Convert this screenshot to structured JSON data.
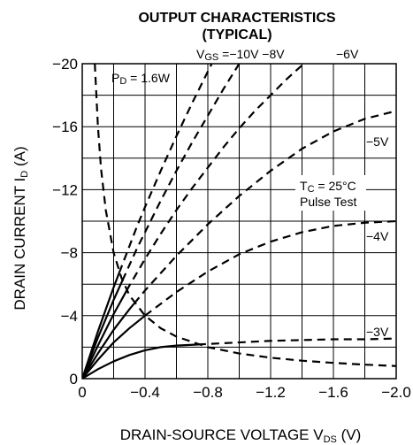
{
  "chart_data": {
    "type": "line",
    "title": "OUTPUT CHARACTERISTICS",
    "subtitle": "(TYPICAL)",
    "xlabel": {
      "main": "DRAIN-SOURCE VOLTAGE  V",
      "sub": "DS",
      "unit": " (V)"
    },
    "ylabel": {
      "main": "DRAIN CURRENT  I",
      "sub": "D",
      "unit": " (A)"
    },
    "xlim": [
      0,
      -2.0
    ],
    "ylim": [
      0,
      -20
    ],
    "x_ticks": [
      0,
      -0.4,
      -0.8,
      -1.2,
      -1.6,
      -2.0
    ],
    "x_tick_labels": [
      "0",
      "−0.4",
      "−0.8",
      "−1.2",
      "−1.6",
      "−2.0"
    ],
    "y_ticks": [
      0,
      -4,
      -8,
      -12,
      -16,
      -20
    ],
    "y_tick_labels": [
      "0",
      "−4",
      "−8",
      "−12",
      "−16",
      "−20"
    ],
    "grid": true,
    "annotations": {
      "vgs": {
        "main": "V",
        "sub": "GS",
        "rest": " =−10V −8V"
      },
      "vgs6": "−6V",
      "vgs5": "−5V",
      "vgs4": "−4V",
      "vgs3": "−3V",
      "pd": {
        "main": "P",
        "sub": "D",
        "rest": " = 1.6W"
      },
      "tc": {
        "main": "T",
        "sub": "C",
        "rest": " = 25°C"
      },
      "pulse": "Pulse Test"
    },
    "series": [
      {
        "label_key": "vgs",
        "style": "solid-then-dashed",
        "x": [
          0,
          -0.05,
          -0.1,
          -0.15,
          -0.2,
          -0.25,
          -0.3,
          -0.35,
          -0.4,
          -0.5,
          -0.6,
          -0.7,
          -0.8,
          -0.9
        ],
        "y": [
          0,
          -1.5,
          -3.0,
          -4.4,
          -5.8,
          -7.1,
          -8.4,
          -9.7,
          -10.9,
          -13.2,
          -15.4,
          -17.5,
          -19.5,
          -21.5
        ]
      },
      {
        "label_key": "vgs",
        "style": "solid-then-dashed",
        "x": [
          0,
          -0.05,
          -0.1,
          -0.15,
          -0.2,
          -0.25,
          -0.3,
          -0.35,
          -0.4,
          -0.5,
          -0.6,
          -0.7,
          -0.8,
          -0.9,
          -1.0
        ],
        "y": [
          0,
          -1.3,
          -2.6,
          -3.8,
          -5.0,
          -6.1,
          -7.2,
          -8.3,
          -9.3,
          -11.3,
          -13.2,
          -15.0,
          -16.7,
          -18.4,
          -20.0
        ]
      },
      {
        "label_key": "vgs6",
        "style": "solid-then-dashed",
        "x": [
          0,
          -0.1,
          -0.2,
          -0.3,
          -0.4,
          -0.5,
          -0.6,
          -0.7,
          -0.8,
          -0.9,
          -1.0,
          -1.1,
          -1.2,
          -1.3,
          -1.4,
          -1.45
        ],
        "y": [
          0,
          -2.1,
          -4.1,
          -5.9,
          -7.6,
          -9.2,
          -10.7,
          -12.1,
          -13.4,
          -14.7,
          -15.9,
          -17.0,
          -18.0,
          -19.0,
          -19.9,
          -20.3
        ]
      },
      {
        "label_key": "vgs5",
        "style": "solid-then-dashed",
        "x": [
          0,
          -0.1,
          -0.2,
          -0.3,
          -0.4,
          -0.6,
          -0.8,
          -1.0,
          -1.2,
          -1.4,
          -1.6,
          -1.8,
          -2.0
        ],
        "y": [
          0,
          -1.6,
          -3.1,
          -4.4,
          -5.6,
          -7.8,
          -9.8,
          -11.6,
          -13.2,
          -14.6,
          -15.7,
          -16.5,
          -17.0
        ]
      },
      {
        "label_key": "vgs4",
        "style": "solid-then-dashed",
        "x": [
          0,
          -0.1,
          -0.2,
          -0.3,
          -0.4,
          -0.6,
          -0.8,
          -1.0,
          -1.2,
          -1.4,
          -1.6,
          -1.8,
          -2.0
        ],
        "y": [
          0,
          -1.2,
          -2.3,
          -3.2,
          -4.0,
          -5.5,
          -6.8,
          -7.9,
          -8.7,
          -9.3,
          -9.7,
          -9.9,
          -10.0
        ]
      },
      {
        "label_key": "vgs3",
        "style": "solid-then-dashed",
        "x": [
          0,
          -0.1,
          -0.2,
          -0.3,
          -0.4,
          -0.5,
          -0.6,
          -0.7,
          -0.8,
          -1.0,
          -1.2,
          -1.4,
          -1.6,
          -1.8,
          -2.0
        ],
        "y": [
          0,
          -0.6,
          -1.1,
          -1.5,
          -1.8,
          -2.0,
          -2.1,
          -2.15,
          -2.2,
          -2.3,
          -2.4,
          -2.45,
          -2.5,
          -2.5,
          -2.55
        ]
      },
      {
        "label_key": "pd",
        "style": "dashed",
        "x": [
          -0.08,
          -0.1,
          -0.12,
          -0.15,
          -0.2,
          -0.25,
          -0.3,
          -0.4,
          -0.5,
          -0.6,
          -0.8,
          -1.0,
          -1.2,
          -1.4,
          -1.6,
          -1.8,
          -2.0
        ],
        "y": [
          -20.0,
          -16.0,
          -13.3,
          -10.7,
          -8.0,
          -6.4,
          -5.3,
          -4.0,
          -3.2,
          -2.67,
          -2.0,
          -1.6,
          -1.33,
          -1.14,
          -1.0,
          -0.89,
          -0.8
        ]
      }
    ]
  }
}
